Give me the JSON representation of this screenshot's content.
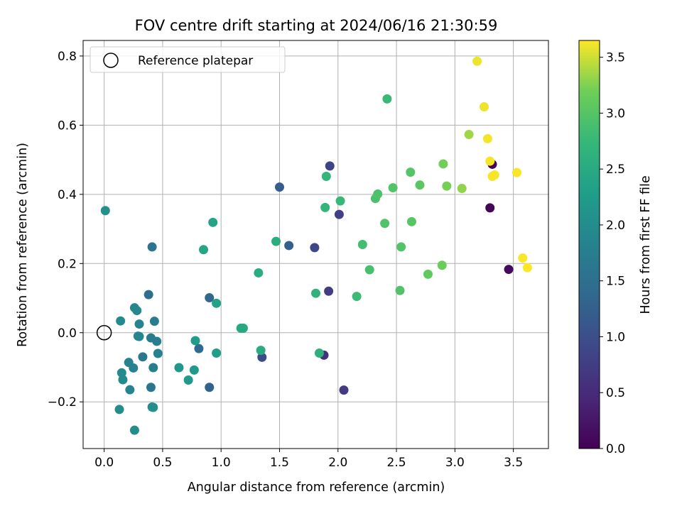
{
  "chart_data": {
    "type": "scatter",
    "title": "FOV centre drift starting at 2024/06/16 21:30:59",
    "xlabel": "Angular distance from reference (arcmin)",
    "ylabel": "Rotation from reference (arcmin)",
    "xlim": [
      -0.18,
      3.8
    ],
    "ylim": [
      -0.335,
      0.845
    ],
    "xticks": [
      0.0,
      0.5,
      1.0,
      1.5,
      2.0,
      2.5,
      3.0,
      3.5
    ],
    "xtick_labels": [
      "0.0",
      "0.5",
      "1.0",
      "1.5",
      "2.0",
      "2.5",
      "3.0",
      "3.5"
    ],
    "yticks": [
      -0.2,
      0.0,
      0.2,
      0.4,
      0.6,
      0.8
    ],
    "ytick_labels": [
      "−0.2",
      "0.0",
      "0.2",
      "0.4",
      "0.6",
      "0.8"
    ],
    "grid": true,
    "legend": {
      "placement": "upper-left",
      "entries": [
        {
          "label": "Reference platepar",
          "marker": "open-circle",
          "x": 0.0,
          "y": 0.0
        }
      ]
    },
    "colorbar": {
      "label": "Hours from first FF file",
      "colormap": "viridis",
      "range": [
        0.0,
        3.65
      ],
      "ticks": [
        0.0,
        0.5,
        1.0,
        1.5,
        2.0,
        2.5,
        3.0,
        3.5
      ],
      "tick_labels": [
        "0.0",
        "0.5",
        "1.0",
        "1.5",
        "2.0",
        "2.5",
        "3.0",
        "3.5"
      ]
    },
    "points": [
      {
        "x": 3.32,
        "y": 0.487,
        "c": 0.02
      },
      {
        "x": 3.3,
        "y": 0.361,
        "c": 0.05
      },
      {
        "x": 3.46,
        "y": 0.183,
        "c": 0.1
      },
      {
        "x": 1.88,
        "y": -0.065,
        "c": 0.6
      },
      {
        "x": 2.05,
        "y": -0.166,
        "c": 0.7
      },
      {
        "x": 1.92,
        "y": 0.12,
        "c": 0.75
      },
      {
        "x": 2.01,
        "y": 0.342,
        "c": 0.8
      },
      {
        "x": 1.93,
        "y": 0.482,
        "c": 0.85
      },
      {
        "x": 1.8,
        "y": 0.246,
        "c": 0.9
      },
      {
        "x": 1.35,
        "y": -0.071,
        "c": 0.95
      },
      {
        "x": 1.5,
        "y": 0.421,
        "c": 1.2
      },
      {
        "x": 1.58,
        "y": 0.252,
        "c": 1.25
      },
      {
        "x": 0.9,
        "y": -0.158,
        "c": 1.3
      },
      {
        "x": 0.9,
        "y": 0.101,
        "c": 1.35
      },
      {
        "x": 0.81,
        "y": -0.046,
        "c": 1.4
      },
      {
        "x": 0.38,
        "y": 0.11,
        "c": 1.5
      },
      {
        "x": 0.41,
        "y": 0.248,
        "c": 1.6
      },
      {
        "x": 0.4,
        "y": -0.158,
        "c": 1.62
      },
      {
        "x": 0.33,
        "y": -0.07,
        "c": 1.65
      },
      {
        "x": 0.4,
        "y": -0.015,
        "c": 1.7
      },
      {
        "x": 0.43,
        "y": 0.033,
        "c": 1.72
      },
      {
        "x": 0.45,
        "y": -0.025,
        "c": 1.75
      },
      {
        "x": 0.42,
        "y": -0.101,
        "c": 1.78
      },
      {
        "x": 0.46,
        "y": -0.06,
        "c": 1.8
      },
      {
        "x": 0.25,
        "y": -0.102,
        "c": 1.82
      },
      {
        "x": 0.21,
        "y": -0.086,
        "c": 1.83
      },
      {
        "x": 0.22,
        "y": -0.165,
        "c": 1.85
      },
      {
        "x": 0.3,
        "y": 0.025,
        "c": 1.86
      },
      {
        "x": 0.29,
        "y": -0.01,
        "c": 1.88
      },
      {
        "x": 0.3,
        "y": -0.011,
        "c": 1.9
      },
      {
        "x": 0.26,
        "y": 0.072,
        "c": 1.9
      },
      {
        "x": 0.28,
        "y": 0.064,
        "c": 1.92
      },
      {
        "x": 0.14,
        "y": 0.034,
        "c": 1.95
      },
      {
        "x": 0.15,
        "y": -0.116,
        "c": 1.96
      },
      {
        "x": 0.16,
        "y": -0.136,
        "c": 1.97
      },
      {
        "x": 0.13,
        "y": -0.222,
        "c": 1.98
      },
      {
        "x": 0.26,
        "y": -0.282,
        "c": 1.99
      },
      {
        "x": 0.41,
        "y": -0.215,
        "c": 2.0
      },
      {
        "x": 0.42,
        "y": -0.216,
        "c": 2.02
      },
      {
        "x": 0.01,
        "y": 0.353,
        "c": 2.05
      },
      {
        "x": 0.64,
        "y": -0.101,
        "c": 2.2
      },
      {
        "x": 0.72,
        "y": -0.137,
        "c": 2.22
      },
      {
        "x": 0.77,
        "y": -0.108,
        "c": 2.24
      },
      {
        "x": 0.78,
        "y": -0.023,
        "c": 2.26
      },
      {
        "x": 0.96,
        "y": -0.059,
        "c": 2.3
      },
      {
        "x": 0.96,
        "y": 0.085,
        "c": 2.35
      },
      {
        "x": 0.93,
        "y": 0.319,
        "c": 2.38
      },
      {
        "x": 0.85,
        "y": 0.24,
        "c": 2.4
      },
      {
        "x": 1.17,
        "y": 0.013,
        "c": 2.45
      },
      {
        "x": 1.19,
        "y": 0.013,
        "c": 2.47
      },
      {
        "x": 1.34,
        "y": -0.051,
        "c": 2.5
      },
      {
        "x": 1.32,
        "y": 0.173,
        "c": 2.52
      },
      {
        "x": 1.47,
        "y": 0.264,
        "c": 2.55
      },
      {
        "x": 1.84,
        "y": -0.059,
        "c": 2.6
      },
      {
        "x": 1.81,
        "y": 0.114,
        "c": 2.65
      },
      {
        "x": 1.89,
        "y": 0.362,
        "c": 2.7
      },
      {
        "x": 1.9,
        "y": 0.452,
        "c": 2.72
      },
      {
        "x": 2.02,
        "y": 0.381,
        "c": 2.75
      },
      {
        "x": 2.42,
        "y": 0.676,
        "c": 2.78
      },
      {
        "x": 2.16,
        "y": 0.105,
        "c": 2.8
      },
      {
        "x": 2.21,
        "y": 0.255,
        "c": 2.85
      },
      {
        "x": 2.27,
        "y": 0.182,
        "c": 2.9
      },
      {
        "x": 2.32,
        "y": 0.388,
        "c": 2.92
      },
      {
        "x": 2.34,
        "y": 0.401,
        "c": 2.93
      },
      {
        "x": 2.4,
        "y": 0.316,
        "c": 2.95
      },
      {
        "x": 2.53,
        "y": 0.122,
        "c": 2.96
      },
      {
        "x": 2.54,
        "y": 0.248,
        "c": 2.97
      },
      {
        "x": 2.47,
        "y": 0.419,
        "c": 2.98
      },
      {
        "x": 2.62,
        "y": 0.464,
        "c": 3.0
      },
      {
        "x": 2.63,
        "y": 0.321,
        "c": 3.02
      },
      {
        "x": 2.7,
        "y": 0.427,
        "c": 3.05
      },
      {
        "x": 2.77,
        "y": 0.169,
        "c": 3.1
      },
      {
        "x": 2.89,
        "y": 0.195,
        "c": 3.15
      },
      {
        "x": 2.9,
        "y": 0.488,
        "c": 3.2
      },
      {
        "x": 2.93,
        "y": 0.424,
        "c": 3.22
      },
      {
        "x": 3.06,
        "y": 0.417,
        "c": 3.3
      },
      {
        "x": 3.12,
        "y": 0.573,
        "c": 3.35
      },
      {
        "x": 3.19,
        "y": 0.785,
        "c": 3.6
      },
      {
        "x": 3.25,
        "y": 0.653,
        "c": 3.6
      },
      {
        "x": 3.28,
        "y": 0.561,
        "c": 3.62
      },
      {
        "x": 3.3,
        "y": 0.496,
        "c": 3.62
      },
      {
        "x": 3.32,
        "y": 0.452,
        "c": 3.63
      },
      {
        "x": 3.34,
        "y": 0.456,
        "c": 3.63
      },
      {
        "x": 3.53,
        "y": 0.463,
        "c": 3.64
      },
      {
        "x": 3.58,
        "y": 0.216,
        "c": 3.64
      },
      {
        "x": 3.62,
        "y": 0.188,
        "c": 3.65
      }
    ]
  }
}
